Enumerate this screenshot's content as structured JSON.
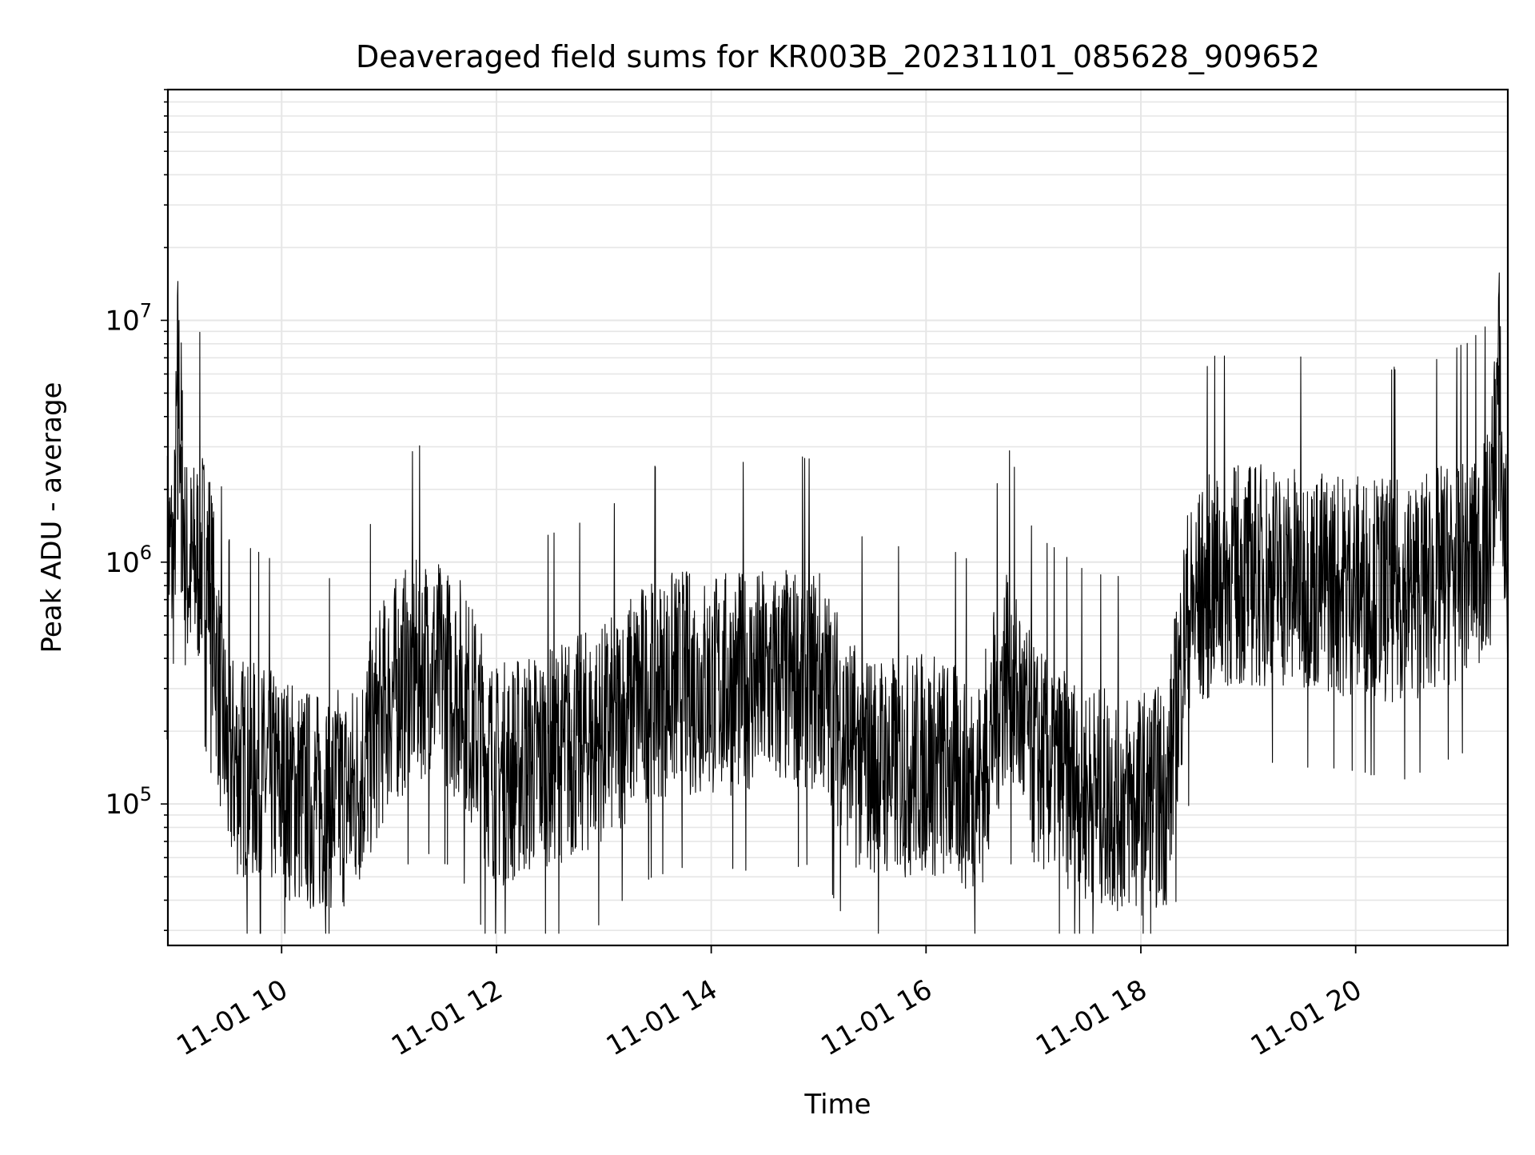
{
  "chart_data": {
    "type": "line",
    "title": "Deaveraged field sums for KR003B_20231101_085628_909652",
    "xlabel": "Time",
    "ylabel": "Peak ADU - average",
    "x_range": [
      "2023-11-01T08:56:28",
      "2023-11-01T21:25:00"
    ],
    "x_ticks": [
      {
        "value": "2023-11-01T10:00",
        "label": "11-01 10"
      },
      {
        "value": "2023-11-01T12:00",
        "label": "11-01 12"
      },
      {
        "value": "2023-11-01T14:00",
        "label": "11-01 14"
      },
      {
        "value": "2023-11-01T16:00",
        "label": "11-01 16"
      },
      {
        "value": "2023-11-01T18:00",
        "label": "11-01 18"
      },
      {
        "value": "2023-11-01T20:00",
        "label": "11-01 20"
      }
    ],
    "y_scale": "log",
    "ylim": [
      26000,
      90000000
    ],
    "y_ticks": [
      {
        "value": 100000,
        "base": "10",
        "exp": "5"
      },
      {
        "value": 1000000,
        "base": "10",
        "exp": "6"
      },
      {
        "value": 10000000,
        "base": "10",
        "exp": "7"
      }
    ],
    "grid": true,
    "line_color": "#000000",
    "grid_color": "#e6e6e6",
    "series": [
      {
        "x": [
          "2023-11-01T08:56",
          "2023-11-01T09:00",
          "2023-11-01T09:02",
          "2023-11-01T09:04",
          "2023-11-01T09:06",
          "2023-11-01T09:10",
          "2023-11-01T09:15",
          "2023-11-01T09:20",
          "2023-11-01T09:25",
          "2023-11-01T09:30",
          "2023-11-01T09:40",
          "2023-11-01T10:00",
          "2023-11-01T10:20",
          "2023-11-01T10:40",
          "2023-11-01T11:00",
          "2023-11-01T11:20",
          "2023-11-01T11:40",
          "2023-11-01T12:00",
          "2023-11-01T12:30",
          "2023-11-01T13:00",
          "2023-11-01T13:20",
          "2023-11-01T13:40",
          "2023-11-01T14:00",
          "2023-11-01T14:30",
          "2023-11-01T15:00",
          "2023-11-01T15:20",
          "2023-11-01T15:40",
          "2023-11-01T16:00",
          "2023-11-01T16:30",
          "2023-11-01T16:45",
          "2023-11-01T17:00",
          "2023-11-01T17:30",
          "2023-11-01T18:00",
          "2023-11-01T18:15",
          "2023-11-01T18:25",
          "2023-11-01T18:40",
          "2023-11-01T19:00",
          "2023-11-01T19:30",
          "2023-11-01T20:00",
          "2023-11-01T20:30",
          "2023-11-01T21:00",
          "2023-11-01T21:15",
          "2023-11-01T21:20",
          "2023-11-01T21:22",
          "2023-11-01T21:25"
        ],
        "y": [
          1100000,
          1000000,
          6000000,
          3000000,
          1000000,
          900000,
          1100000,
          900000,
          300000,
          150000,
          140000,
          120000,
          100000,
          110000,
          280000,
          380000,
          300000,
          130000,
          160000,
          190000,
          280000,
          320000,
          310000,
          320000,
          330000,
          160000,
          140000,
          150000,
          120000,
          380000,
          160000,
          110000,
          100000,
          110000,
          550000,
          850000,
          900000,
          850000,
          800000,
          750000,
          950000,
          1200000,
          6500000,
          1800000,
          900000
        ]
      }
    ]
  }
}
